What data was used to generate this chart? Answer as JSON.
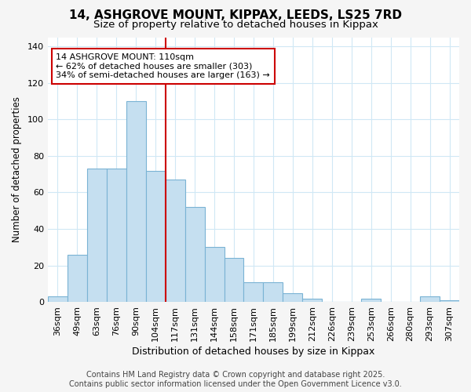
{
  "title1": "14, ASHGROVE MOUNT, KIPPAX, LEEDS, LS25 7RD",
  "title2": "Size of property relative to detached houses in Kippax",
  "xlabel": "Distribution of detached houses by size in Kippax",
  "ylabel": "Number of detached properties",
  "categories": [
    "36sqm",
    "49sqm",
    "63sqm",
    "76sqm",
    "90sqm",
    "104sqm",
    "117sqm",
    "131sqm",
    "144sqm",
    "158sqm",
    "171sqm",
    "185sqm",
    "199sqm",
    "212sqm",
    "226sqm",
    "239sqm",
    "253sqm",
    "266sqm",
    "280sqm",
    "293sqm",
    "307sqm"
  ],
  "values": [
    3,
    26,
    73,
    73,
    110,
    72,
    67,
    52,
    30,
    24,
    11,
    11,
    5,
    2,
    0,
    0,
    2,
    0,
    0,
    3,
    1
  ],
  "bar_color": "#c5dff0",
  "bar_edge_color": "#7ab3d4",
  "annotation_text": "14 ASHGROVE MOUNT: 110sqm\n← 62% of detached houses are smaller (303)\n34% of semi-detached houses are larger (163) →",
  "annotation_box_facecolor": "#ffffff",
  "annotation_box_edgecolor": "#cc0000",
  "vline_color": "#cc0000",
  "ylim": [
    0,
    145
  ],
  "yticks": [
    0,
    20,
    40,
    60,
    80,
    100,
    120,
    140
  ],
  "footer1": "Contains HM Land Registry data © Crown copyright and database right 2025.",
  "footer2": "Contains public sector information licensed under the Open Government Licence v3.0.",
  "fig_background_color": "#f5f5f5",
  "plot_background_color": "#ffffff",
  "grid_color": "#d0e8f5",
  "title1_fontsize": 11,
  "title2_fontsize": 9.5,
  "tick_fontsize": 8,
  "xlabel_fontsize": 9,
  "ylabel_fontsize": 8.5,
  "footer_fontsize": 7,
  "ann_fontsize": 8
}
